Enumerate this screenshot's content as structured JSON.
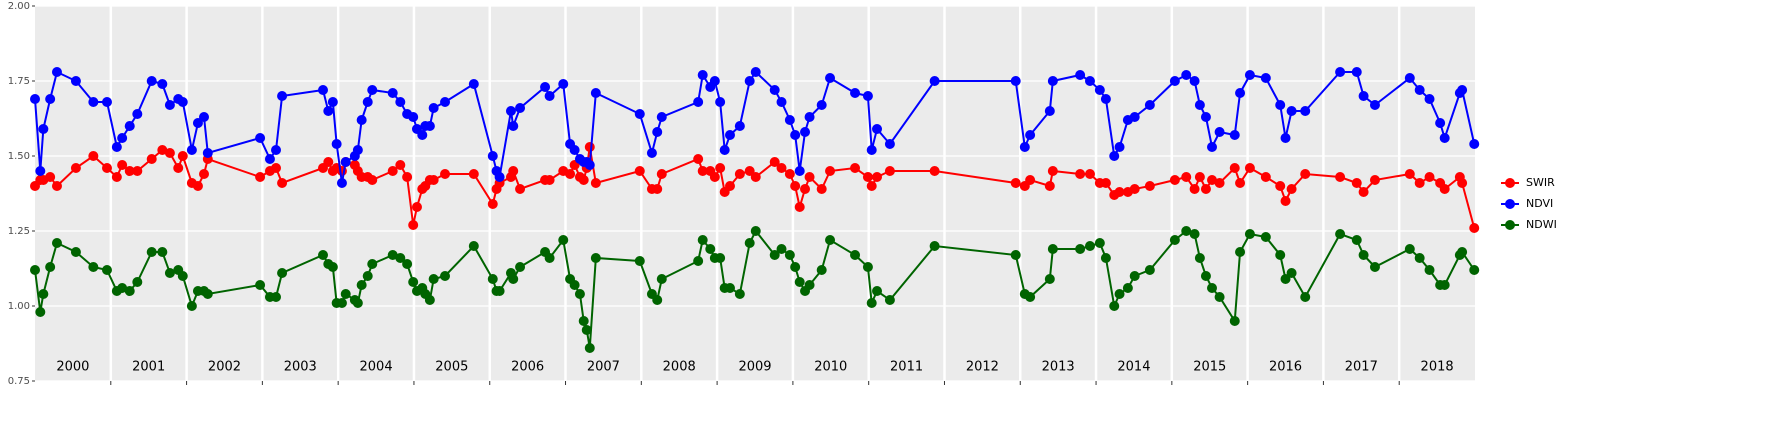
{
  "chart_data": {
    "type": "line",
    "x": [
      2000.0,
      2000.07,
      2000.11,
      2000.2,
      2000.29,
      2000.54,
      2000.77,
      2000.95,
      2001.08,
      2001.15,
      2001.25,
      2001.35,
      2001.54,
      2001.68,
      2001.78,
      2001.89,
      2001.95,
      2002.07,
      2002.15,
      2002.23,
      2002.28,
      2002.97,
      2003.1,
      2003.18,
      2003.26,
      2003.8,
      2003.87,
      2003.93,
      2003.98,
      2004.05,
      2004.1,
      2004.22,
      2004.26,
      2004.31,
      2004.39,
      2004.45,
      2004.72,
      2004.82,
      2004.91,
      2004.99,
      2005.04,
      2005.11,
      2005.15,
      2005.21,
      2005.26,
      2005.41,
      2005.79,
      2006.04,
      2006.09,
      2006.13,
      2006.28,
      2006.31,
      2006.4,
      2006.73,
      2006.79,
      2006.97,
      2007.06,
      2007.12,
      2007.19,
      2007.24,
      2007.28,
      2007.32,
      2007.4,
      2007.98,
      2008.14,
      2008.21,
      2008.27,
      2008.75,
      2008.81,
      2008.91,
      2008.97,
      2009.04,
      2009.1,
      2009.17,
      2009.3,
      2009.43,
      2009.51,
      2009.76,
      2009.85,
      2009.96,
      2010.03,
      2010.09,
      2010.16,
      2010.22,
      2010.38,
      2010.49,
      2010.82,
      2010.99,
      2011.04,
      2011.11,
      2011.28,
      2011.87,
      2012.94,
      2013.06,
      2013.13,
      2013.39,
      2013.43,
      2013.79,
      2013.92,
      2014.05,
      2014.13,
      2014.24,
      2014.31,
      2014.42,
      2014.51,
      2014.71,
      2015.04,
      2015.19,
      2015.3,
      2015.37,
      2015.45,
      2015.53,
      2015.63,
      2015.83,
      2015.9,
      2016.03,
      2016.24,
      2016.43,
      2016.5,
      2016.58,
      2016.76,
      2017.22,
      2017.44,
      2017.53,
      2017.68,
      2018.14,
      2018.27,
      2018.4,
      2018.54,
      2018.6,
      2018.8,
      2018.83,
      2018.99
    ],
    "series": [
      {
        "name": "SWIR",
        "color": "#ff0000",
        "values": [
          1.4,
          1.42,
          1.42,
          1.43,
          1.4,
          1.46,
          1.5,
          1.46,
          1.43,
          1.47,
          1.45,
          1.45,
          1.49,
          1.52,
          1.51,
          1.46,
          1.5,
          1.41,
          1.4,
          1.44,
          1.49,
          1.43,
          1.45,
          1.46,
          1.41,
          1.46,
          1.48,
          1.45,
          1.46,
          1.45,
          1.48,
          1.47,
          1.45,
          1.43,
          1.43,
          1.42,
          1.45,
          1.47,
          1.43,
          1.27,
          1.33,
          1.39,
          1.4,
          1.42,
          1.42,
          1.44,
          1.44,
          1.34,
          1.39,
          1.41,
          1.43,
          1.45,
          1.39,
          1.42,
          1.42,
          1.45,
          1.44,
          1.47,
          1.43,
          1.42,
          1.46,
          1.53,
          1.41,
          1.45,
          1.39,
          1.39,
          1.44,
          1.49,
          1.45,
          1.45,
          1.43,
          1.46,
          1.38,
          1.4,
          1.44,
          1.45,
          1.43,
          1.48,
          1.46,
          1.44,
          1.4,
          1.33,
          1.39,
          1.43,
          1.39,
          1.45,
          1.46,
          1.43,
          1.4,
          1.43,
          1.45,
          1.45,
          1.41,
          1.4,
          1.42,
          1.4,
          1.45,
          1.44,
          1.44,
          1.41,
          1.41,
          1.37,
          1.38,
          1.38,
          1.39,
          1.4,
          1.42,
          1.43,
          1.39,
          1.43,
          1.39,
          1.42,
          1.41,
          1.46,
          1.41,
          1.46,
          1.43,
          1.4,
          1.35,
          1.39,
          1.44,
          1.43,
          1.41,
          1.38,
          1.42,
          1.44,
          1.41,
          1.43,
          1.41,
          1.39,
          1.43,
          1.41,
          1.26
        ]
      },
      {
        "name": "NDVI",
        "color": "#0000ff",
        "values": [
          1.69,
          1.45,
          1.59,
          1.69,
          1.78,
          1.75,
          1.68,
          1.68,
          1.53,
          1.56,
          1.6,
          1.64,
          1.75,
          1.74,
          1.67,
          1.69,
          1.68,
          1.52,
          1.61,
          1.63,
          1.51,
          1.56,
          1.49,
          1.52,
          1.7,
          1.72,
          1.65,
          1.68,
          1.54,
          1.41,
          1.48,
          1.5,
          1.52,
          1.62,
          1.68,
          1.72,
          1.71,
          1.68,
          1.64,
          1.63,
          1.59,
          1.57,
          1.6,
          1.6,
          1.66,
          1.68,
          1.74,
          1.5,
          1.45,
          1.43,
          1.65,
          1.6,
          1.66,
          1.73,
          1.7,
          1.74,
          1.54,
          1.52,
          1.49,
          1.48,
          1.48,
          1.47,
          1.71,
          1.64,
          1.51,
          1.58,
          1.63,
          1.68,
          1.77,
          1.73,
          1.75,
          1.68,
          1.52,
          1.57,
          1.6,
          1.75,
          1.78,
          1.72,
          1.68,
          1.62,
          1.57,
          1.45,
          1.58,
          1.63,
          1.67,
          1.76,
          1.71,
          1.7,
          1.52,
          1.59,
          1.54,
          1.75,
          1.75,
          1.53,
          1.57,
          1.65,
          1.75,
          1.77,
          1.75,
          1.72,
          1.69,
          1.5,
          1.53,
          1.62,
          1.63,
          1.67,
          1.75,
          1.77,
          1.75,
          1.67,
          1.63,
          1.53,
          1.58,
          1.57,
          1.71,
          1.77,
          1.76,
          1.67,
          1.56,
          1.65,
          1.65,
          1.78,
          1.78,
          1.7,
          1.67,
          1.76,
          1.72,
          1.69,
          1.61,
          1.56,
          1.71,
          1.72,
          1.54
        ]
      },
      {
        "name": "NDWI",
        "color": "#006400",
        "values": [
          1.12,
          0.98,
          1.04,
          1.13,
          1.21,
          1.18,
          1.13,
          1.12,
          1.05,
          1.06,
          1.05,
          1.08,
          1.18,
          1.18,
          1.11,
          1.12,
          1.1,
          1.0,
          1.05,
          1.05,
          1.04,
          1.07,
          1.03,
          1.03,
          1.11,
          1.17,
          1.14,
          1.13,
          1.01,
          1.01,
          1.04,
          1.02,
          1.01,
          1.07,
          1.1,
          1.14,
          1.17,
          1.16,
          1.14,
          1.08,
          1.05,
          1.06,
          1.04,
          1.02,
          1.09,
          1.1,
          1.2,
          1.09,
          1.05,
          1.05,
          1.11,
          1.09,
          1.13,
          1.18,
          1.16,
          1.22,
          1.09,
          1.07,
          1.04,
          0.95,
          0.92,
          0.86,
          1.16,
          1.15,
          1.04,
          1.02,
          1.09,
          1.15,
          1.22,
          1.19,
          1.16,
          1.16,
          1.06,
          1.06,
          1.04,
          1.21,
          1.25,
          1.17,
          1.19,
          1.17,
          1.13,
          1.08,
          1.05,
          1.07,
          1.12,
          1.22,
          1.17,
          1.13,
          1.01,
          1.05,
          1.02,
          1.2,
          1.17,
          1.04,
          1.03,
          1.09,
          1.19,
          1.19,
          1.2,
          1.21,
          1.16,
          1.0,
          1.04,
          1.06,
          1.1,
          1.12,
          1.22,
          1.25,
          1.24,
          1.16,
          1.1,
          1.06,
          1.03,
          0.95,
          1.18,
          1.24,
          1.23,
          1.17,
          1.09,
          1.11,
          1.03,
          1.24,
          1.22,
          1.17,
          1.13,
          1.19,
          1.16,
          1.12,
          1.07,
          1.07,
          1.17,
          1.18,
          1.12
        ]
      }
    ],
    "xlim": [
      2000,
      2019
    ],
    "xticks": [
      {
        "value": 2000.5,
        "label": "2000"
      },
      {
        "value": 2001.5,
        "label": "2001"
      },
      {
        "value": 2002.5,
        "label": "2002"
      },
      {
        "value": 2003.5,
        "label": "2003"
      },
      {
        "value": 2004.5,
        "label": "2004"
      },
      {
        "value": 2005.5,
        "label": "2005"
      },
      {
        "value": 2006.5,
        "label": "2006"
      },
      {
        "value": 2007.5,
        "label": "2007"
      },
      {
        "value": 2008.5,
        "label": "2008"
      },
      {
        "value": 2009.5,
        "label": "2009"
      },
      {
        "value": 2010.5,
        "label": "2010"
      },
      {
        "value": 2011.5,
        "label": "2011"
      },
      {
        "value": 2012.5,
        "label": "2012"
      },
      {
        "value": 2013.5,
        "label": "2013"
      },
      {
        "value": 2014.5,
        "label": "2014"
      },
      {
        "value": 2015.5,
        "label": "2015"
      },
      {
        "value": 2016.5,
        "label": "2016"
      },
      {
        "value": 2017.5,
        "label": "2017"
      },
      {
        "value": 2018.5,
        "label": "2018"
      }
    ],
    "x_gridlines": [
      2001,
      2002,
      2003,
      2004,
      2005,
      2006,
      2007,
      2008,
      2009,
      2010,
      2011,
      2012,
      2013,
      2014,
      2015,
      2016,
      2017,
      2018
    ],
    "ylim": [
      0.75,
      2.0
    ],
    "yticks": [
      {
        "value": 0.75,
        "label": "0.75"
      },
      {
        "value": 1.0,
        "label": "1.00"
      },
      {
        "value": 1.25,
        "label": "1.25"
      },
      {
        "value": 1.5,
        "label": "1.50"
      },
      {
        "value": 1.75,
        "label": "1.75"
      },
      {
        "value": 2.0,
        "label": "2.00"
      }
    ],
    "grid": true,
    "legend": "right"
  }
}
